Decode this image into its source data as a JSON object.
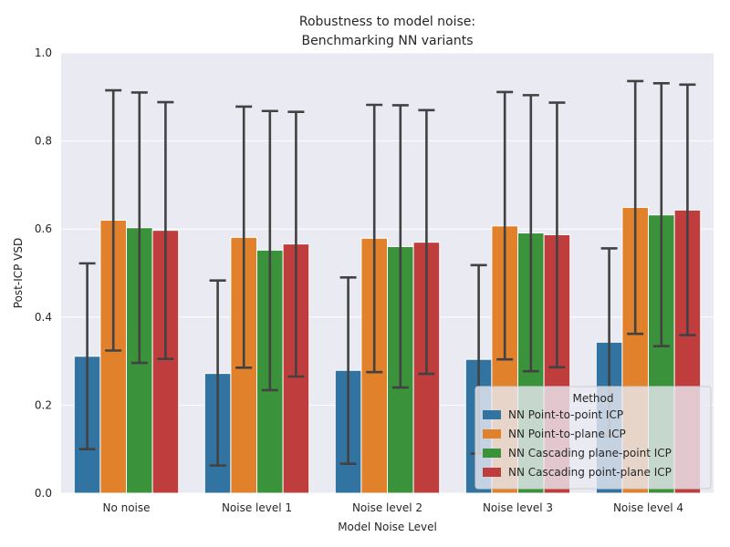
{
  "chart_data": {
    "type": "bar",
    "title_lines": [
      "Robustness to model noise:",
      "Benchmarking NN variants"
    ],
    "xlabel": "Model Noise Level",
    "ylabel": "Post-ICP VSD",
    "ylim": [
      0,
      1.0
    ],
    "yticks": [
      "0.0",
      "0.2",
      "0.4",
      "0.6",
      "0.8",
      "1.0"
    ],
    "ytick_values": [
      0,
      0.2,
      0.4,
      0.6,
      0.8,
      1.0
    ],
    "grid": true,
    "categories": [
      "No noise",
      "Noise level 1",
      "Noise level 2",
      "Noise level 3",
      "Noise level 4"
    ],
    "legend": {
      "title": "Method",
      "placement": "lower-right"
    },
    "series": [
      {
        "name": "NN Point-to-point ICP",
        "color": "#3274a1",
        "values": [
          0.311,
          0.272,
          0.279,
          0.304,
          0.343
        ],
        "err_low": [
          0.1,
          0.063,
          0.067,
          0.09,
          0.13
        ],
        "err_high": [
          0.522,
          0.483,
          0.49,
          0.518,
          0.556
        ]
      },
      {
        "name": "NN Point-to-plane ICP",
        "color": "#e1812c",
        "values": [
          0.62,
          0.581,
          0.579,
          0.607,
          0.649
        ],
        "err_low": [
          0.324,
          0.285,
          0.275,
          0.304,
          0.362
        ],
        "err_high": [
          0.915,
          0.878,
          0.882,
          0.911,
          0.936
        ]
      },
      {
        "name": "NN Cascading plane-point ICP",
        "color": "#3a923a",
        "values": [
          0.603,
          0.552,
          0.56,
          0.591,
          0.632
        ],
        "err_low": [
          0.296,
          0.234,
          0.24,
          0.277,
          0.334
        ],
        "err_high": [
          0.91,
          0.868,
          0.881,
          0.904,
          0.931
        ]
      },
      {
        "name": "NN Cascading point-plane ICP",
        "color": "#c03d3e",
        "values": [
          0.597,
          0.566,
          0.57,
          0.587,
          0.643
        ],
        "err_low": [
          0.305,
          0.265,
          0.271,
          0.286,
          0.359
        ],
        "err_high": [
          0.888,
          0.866,
          0.87,
          0.887,
          0.928
        ]
      }
    ]
  }
}
